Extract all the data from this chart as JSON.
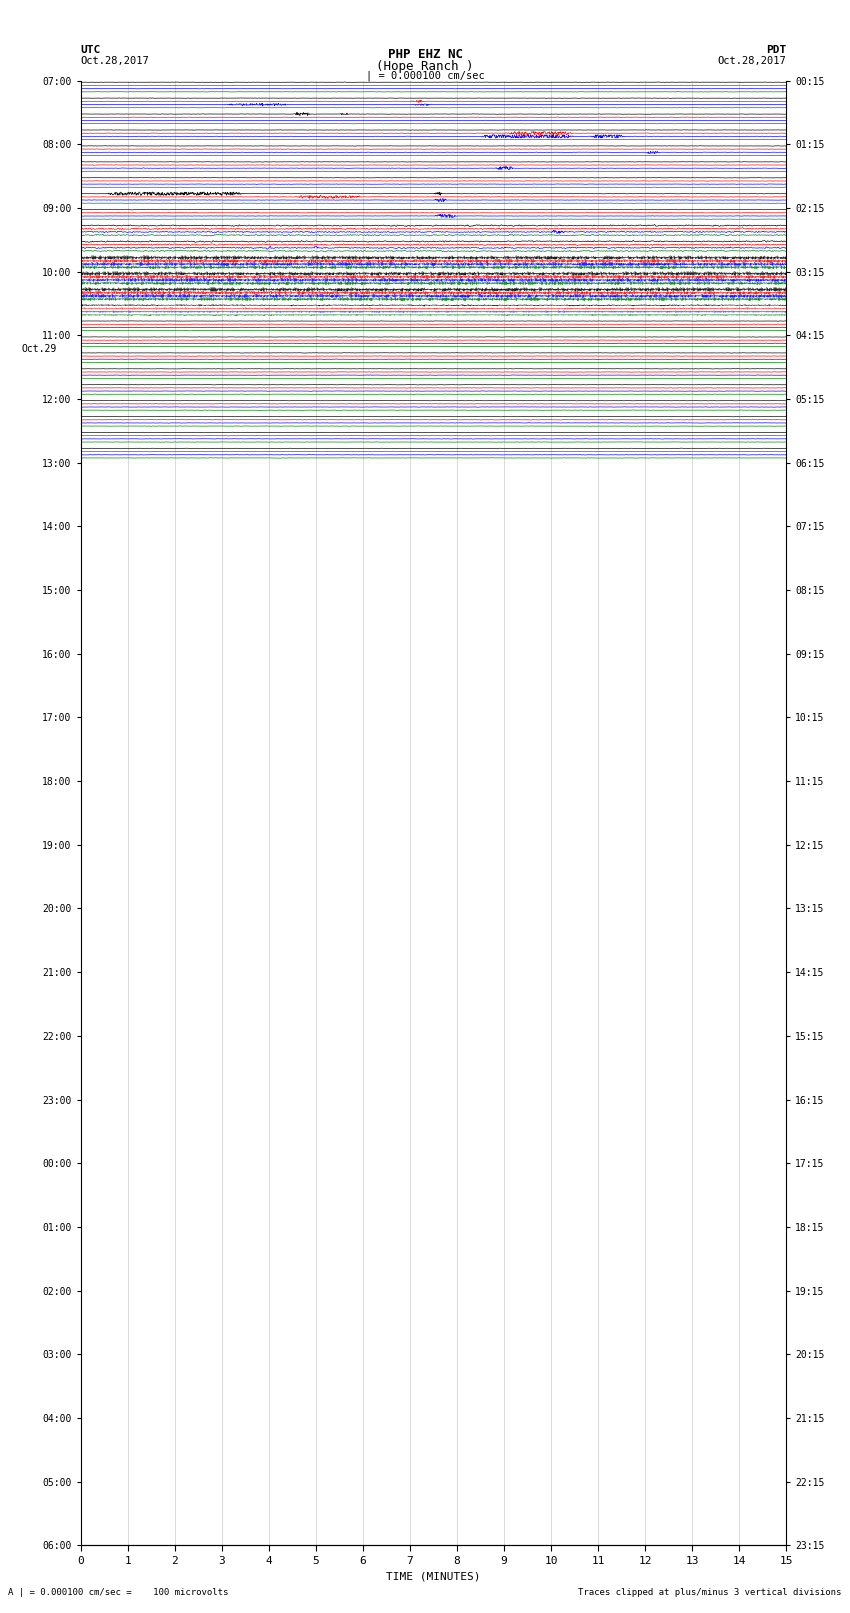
{
  "title_line1": "PHP EHZ NC",
  "title_line2": "(Hope Ranch )",
  "title_line3": "| = 0.000100 cm/sec",
  "left_label_line1": "UTC",
  "left_label_line2": "Oct.28,2017",
  "right_label_line1": "PDT",
  "right_label_line2": "Oct.28,2017",
  "bottom_label": "TIME (MINUTES)",
  "bottom_note_left": "A | = 0.000100 cm/sec =    100 microvolts",
  "bottom_note_right": "Traces clipped at plus/minus 3 vertical divisions",
  "xlabel_ticks": [
    0,
    1,
    2,
    3,
    4,
    5,
    6,
    7,
    8,
    9,
    10,
    11,
    12,
    13,
    14,
    15
  ],
  "utc_labels": [
    [
      "07:00",
      0
    ],
    [
      "08:00",
      4
    ],
    [
      "09:00",
      8
    ],
    [
      "10:00",
      12
    ],
    [
      "11:00",
      16
    ],
    [
      "12:00",
      20
    ],
    [
      "13:00",
      24
    ],
    [
      "14:00",
      28
    ],
    [
      "15:00",
      32
    ],
    [
      "16:00",
      36
    ],
    [
      "17:00",
      40
    ],
    [
      "18:00",
      44
    ],
    [
      "19:00",
      48
    ],
    [
      "20:00",
      52
    ],
    [
      "21:00",
      56
    ],
    [
      "22:00",
      60
    ],
    [
      "23:00",
      64
    ],
    [
      "Oct.29",
      68
    ],
    [
      "00:00",
      68
    ],
    [
      "01:00",
      72
    ],
    [
      "02:00",
      76
    ],
    [
      "03:00",
      80
    ],
    [
      "04:00",
      84
    ],
    [
      "05:00",
      88
    ],
    [
      "06:00",
      92
    ]
  ],
  "pdt_labels": [
    [
      "00:15",
      0
    ],
    [
      "01:15",
      4
    ],
    [
      "02:15",
      8
    ],
    [
      "03:15",
      12
    ],
    [
      "04:15",
      16
    ],
    [
      "05:15",
      20
    ],
    [
      "06:15",
      24
    ],
    [
      "07:15",
      28
    ],
    [
      "08:15",
      32
    ],
    [
      "09:15",
      36
    ],
    [
      "10:15",
      40
    ],
    [
      "11:15",
      44
    ],
    [
      "12:15",
      48
    ],
    [
      "13:15",
      52
    ],
    [
      "14:15",
      56
    ],
    [
      "15:15",
      60
    ],
    [
      "16:15",
      64
    ],
    [
      "17:15",
      68
    ],
    [
      "18:15",
      72
    ],
    [
      "19:15",
      76
    ],
    [
      "20:15",
      80
    ],
    [
      "21:15",
      84
    ],
    [
      "22:15",
      88
    ],
    [
      "23:15",
      92
    ]
  ],
  "colors": [
    "black",
    "red",
    "blue",
    "green"
  ],
  "n_groups": 24,
  "traces_per_group": 4,
  "bg_color": "white",
  "fig_width": 8.5,
  "fig_height": 16.13
}
